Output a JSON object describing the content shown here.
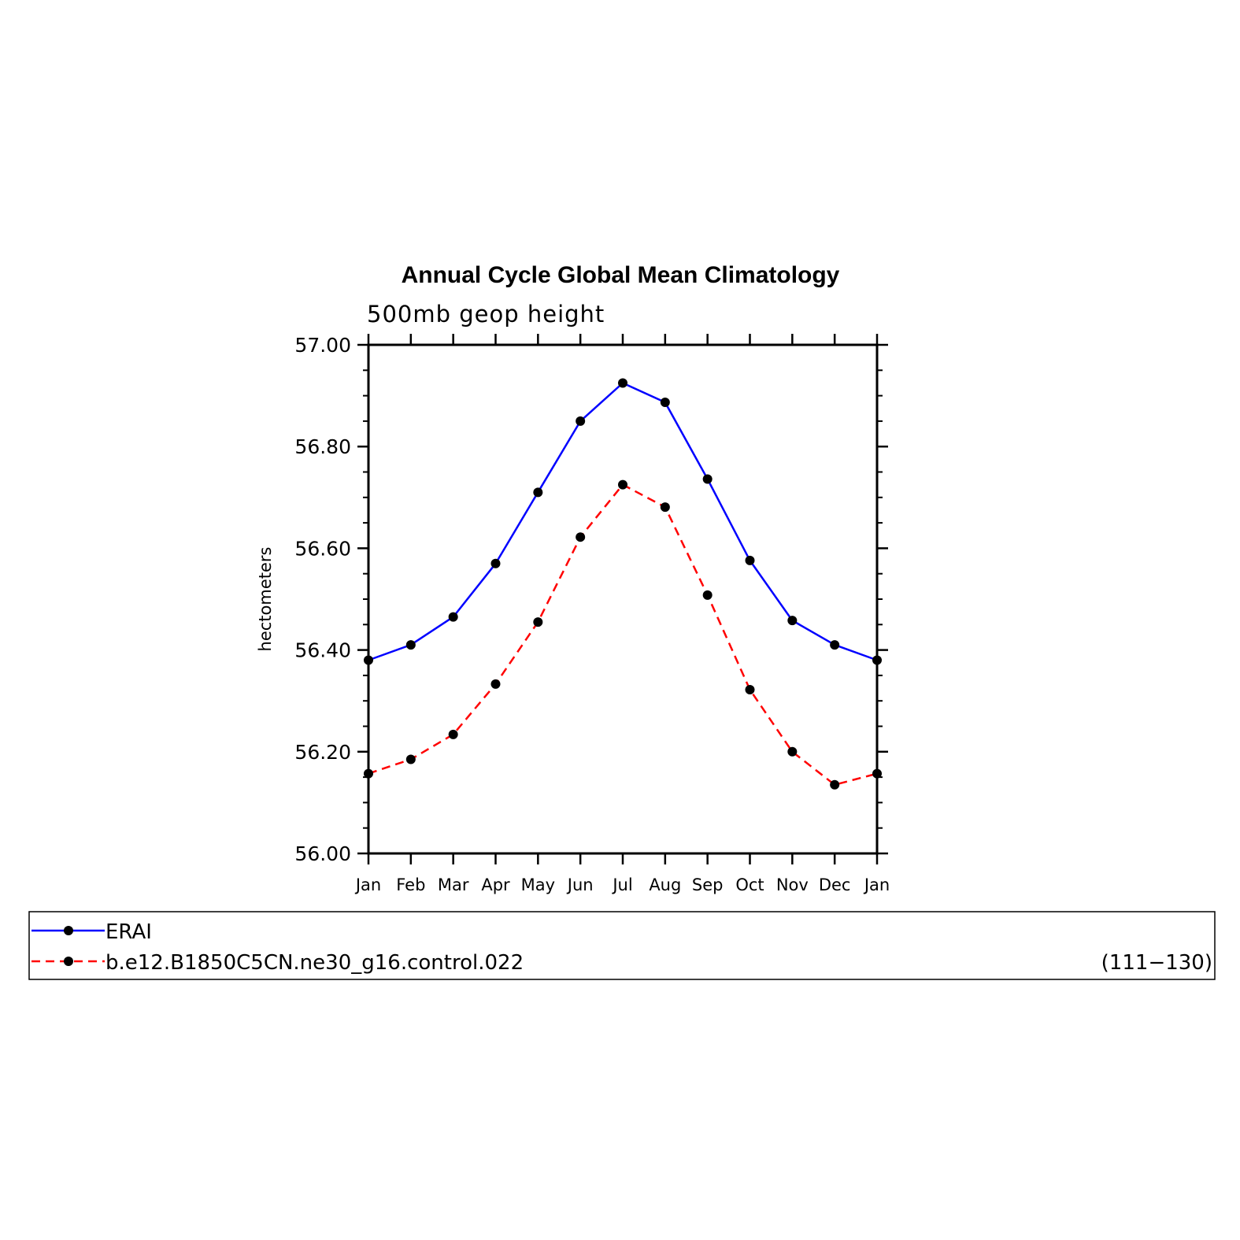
{
  "chart_data": {
    "type": "line",
    "title": "Annual Cycle Global Mean Climatology",
    "subtitle": "500mb geop height",
    "xlabel": "",
    "ylabel": "hectometers",
    "categories": [
      "Jan",
      "Feb",
      "Mar",
      "Apr",
      "May",
      "Jun",
      "Jul",
      "Aug",
      "Sep",
      "Oct",
      "Nov",
      "Dec",
      "Jan"
    ],
    "ylim": [
      56.0,
      57.0
    ],
    "yticks": [
      "56.00",
      "56.20",
      "56.40",
      "56.60",
      "56.80",
      "57.00"
    ],
    "grid": false,
    "legend_placement": "bottom",
    "series": [
      {
        "name": "ERAI",
        "color": "#0000ff",
        "dash": "solid",
        "marker": "black-dot",
        "values": [
          56.38,
          56.41,
          56.465,
          56.57,
          56.71,
          56.85,
          56.925,
          56.887,
          56.736,
          56.576,
          56.458,
          56.41,
          56.38
        ]
      },
      {
        "name": "b.e12.B1850C5CN.ne30_g16.control.022",
        "color": "#ff0000",
        "dash": "dashed",
        "marker": "black-dot",
        "values": [
          56.157,
          56.185,
          56.234,
          56.333,
          56.455,
          56.622,
          56.725,
          56.681,
          56.508,
          56.322,
          56.2,
          56.135,
          56.157
        ]
      }
    ],
    "legend_note": "(111−130)"
  }
}
